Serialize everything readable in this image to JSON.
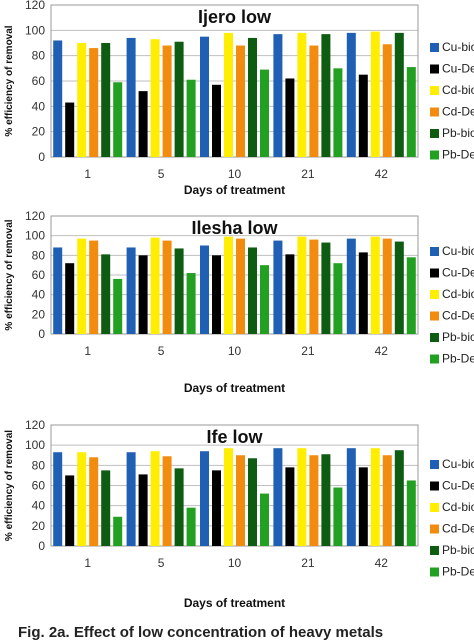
{
  "caption": "Fig. 2a. Effect of low concentration of heavy metals",
  "colors": {
    "Cu-bio": "#1f5fb4",
    "Cu-De": "#000000",
    "Cd-bio": "#ffee00",
    "Cd-De": "#f28c0f",
    "Pb-bio": "#0d5c12",
    "Pb-De": "#22a022"
  },
  "chart_data": [
    {
      "type": "bar",
      "title": "Ijero low",
      "xlabel": "Days of treatment",
      "ylabel": "% efficiency of removal",
      "categories": [
        "1",
        "5",
        "10",
        "21",
        "42"
      ],
      "ylim": [
        0,
        120
      ],
      "yticks": [
        "0",
        "20",
        "40",
        "60",
        "80",
        "100",
        "120"
      ],
      "grid": true,
      "legend_position": "right",
      "legend_labels": [
        "Cu-bio",
        "Cu-De",
        "Cd-bio",
        "Cd-De",
        "Pb-bio",
        "Pb-De"
      ],
      "series": [
        {
          "name": "Cu-bio",
          "values": [
            92,
            94,
            95,
            97,
            98
          ]
        },
        {
          "name": "Cu-De",
          "values": [
            43,
            52,
            57,
            62,
            65
          ]
        },
        {
          "name": "Cd-bio",
          "values": [
            90,
            93,
            98,
            98,
            99
          ]
        },
        {
          "name": "Cd-De",
          "values": [
            86,
            88,
            88,
            88,
            89
          ]
        },
        {
          "name": "Pb-bio",
          "values": [
            90,
            91,
            94,
            97,
            98
          ]
        },
        {
          "name": "Pb-De",
          "values": [
            59,
            61,
            69,
            70,
            71
          ]
        }
      ]
    },
    {
      "type": "bar",
      "title": "Ilesha low",
      "xlabel": "Days of treatment",
      "ylabel": "% efficiency of removal",
      "categories": [
        "1",
        "5",
        "10",
        "21",
        "42"
      ],
      "ylim": [
        0,
        120
      ],
      "yticks": [
        "0",
        "20",
        "40",
        "60",
        "80",
        "100",
        "120"
      ],
      "grid": true,
      "legend_position": "right",
      "legend_labels": [
        "Cu-bio",
        "Cu-De",
        "Cd-bio",
        "Cd-De",
        "Pb-bio",
        "Pb-De"
      ],
      "series": [
        {
          "name": "Cu-bio",
          "values": [
            88,
            88,
            90,
            95,
            97
          ]
        },
        {
          "name": "Cu-De",
          "values": [
            72,
            80,
            80,
            81,
            83
          ]
        },
        {
          "name": "Cd-bio",
          "values": [
            97,
            98,
            99,
            99,
            99
          ]
        },
        {
          "name": "Cd-De",
          "values": [
            95,
            95,
            97,
            96,
            97
          ]
        },
        {
          "name": "Pb-bio",
          "values": [
            81,
            87,
            88,
            93,
            94
          ]
        },
        {
          "name": "Pb-De",
          "values": [
            56,
            62,
            70,
            72,
            78
          ]
        }
      ]
    },
    {
      "type": "bar",
      "title": "Ife low",
      "xlabel": "Days of treatment",
      "ylabel": "% efficiency of removal",
      "categories": [
        "1",
        "5",
        "10",
        "21",
        "42"
      ],
      "ylim": [
        0,
        120
      ],
      "yticks": [
        "0",
        "20",
        "40",
        "60",
        "80",
        "100",
        "120"
      ],
      "grid": true,
      "legend_position": "right",
      "legend_labels": [
        "Cu-bio",
        "Cu-De",
        "Cd-bio",
        "Cd-De",
        "Pb-bio",
        "Pb-De"
      ],
      "series": [
        {
          "name": "Cu-bio",
          "values": [
            93,
            93,
            94,
            97,
            97
          ]
        },
        {
          "name": "Cu-De",
          "values": [
            70,
            71,
            75,
            78,
            78
          ]
        },
        {
          "name": "Cd-bio",
          "values": [
            93,
            94,
            97,
            97,
            97
          ]
        },
        {
          "name": "Cd-De",
          "values": [
            88,
            89,
            90,
            90,
            90
          ]
        },
        {
          "name": "Pb-bio",
          "values": [
            75,
            77,
            87,
            91,
            95
          ]
        },
        {
          "name": "Pb-De",
          "values": [
            29,
            38,
            52,
            58,
            65
          ]
        }
      ]
    }
  ]
}
